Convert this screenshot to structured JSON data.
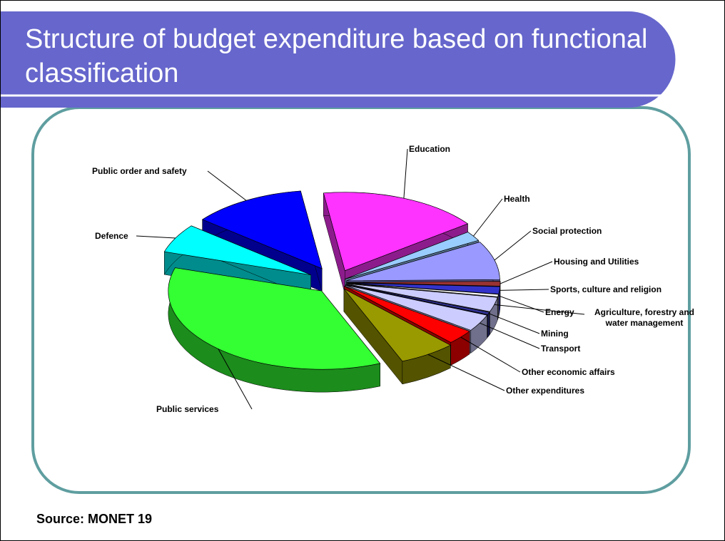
{
  "title": "Structure of budget expenditure based on functional classification",
  "source": "Source: MONET 19",
  "chart_data": {
    "type": "pie",
    "categories": [
      "Education",
      "Health",
      "Social protection",
      "Housing and Utilities",
      "Sports, culture and religion",
      "Energy",
      "Agriculture, forestry and water management",
      "Mining",
      "Transport",
      "Other economic affairs",
      "Other expenditures",
      "Public services",
      "Defence",
      "Public order and safety"
    ],
    "values": [
      17,
      2,
      8,
      1,
      1.5,
      0.5,
      3,
      0.5,
      3.5,
      3,
      6,
      36,
      6,
      12
    ],
    "colors": [
      "#ff33ff",
      "#99ccff",
      "#9999ff",
      "#993333",
      "#3333cc",
      "#ffffff",
      "#ccccff",
      "#333399",
      "#ccccff",
      "#ff0000",
      "#999900",
      "#33ff33",
      "#00ffff",
      "#0000ff"
    ]
  }
}
